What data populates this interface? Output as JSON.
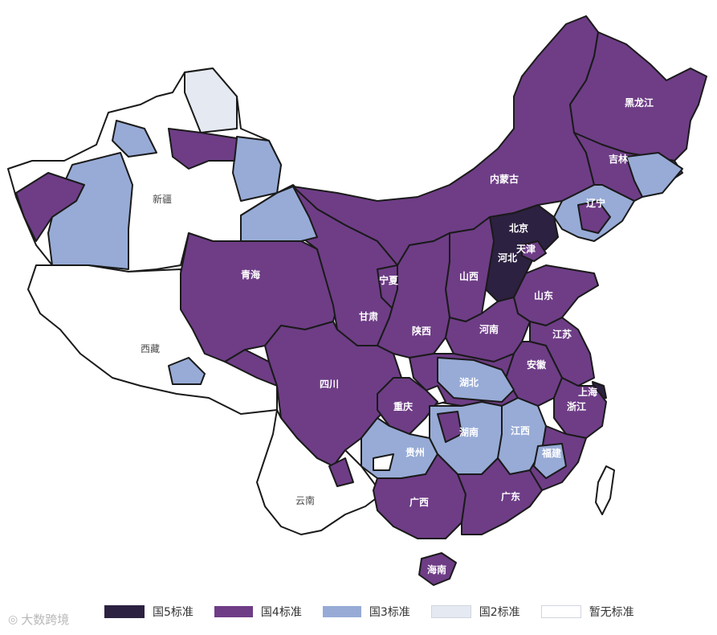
{
  "colors": {
    "guo5": "#2c2140",
    "guo4": "#6e3d86",
    "guo3": "#97abd6",
    "guo2": "#e5e9f1",
    "none": "#ffffff",
    "border": "#1a1a1a"
  },
  "provinces": {
    "heilongjiang": "黑龙江",
    "jilin": "吉林",
    "liaoning": "辽宁",
    "neimenggu": "内蒙古",
    "beijing": "北京",
    "tianjin": "天津",
    "hebei": "河北",
    "shanxi": "山西",
    "shandong": "山东",
    "ningxia": "宁夏",
    "gansu": "甘肃",
    "qinghai": "青海",
    "xinjiang": "新疆",
    "xizang": "西藏",
    "shaanxi": "陕西",
    "henan": "河南",
    "jiangsu": "江苏",
    "anhui": "安徽",
    "shanghai": "上海",
    "zhejiang": "浙江",
    "hubei": "湖北",
    "sichuan": "四川",
    "chongqing": "重庆",
    "hunan": "湖南",
    "jiangxi": "江西",
    "fujian": "福建",
    "guizhou": "贵州",
    "guangxi": "广西",
    "guangdong": "广东",
    "yunnan": "云南",
    "hainan": "海南"
  },
  "legend": [
    {
      "label": "国5标准",
      "color": "#2c2140"
    },
    {
      "label": "国4标准",
      "color": "#6e3d86"
    },
    {
      "label": "国3标准",
      "color": "#97abd6"
    },
    {
      "label": "国2标准",
      "color": "#e5e9f1"
    },
    {
      "label": "暂无标准",
      "color": "#ffffff"
    }
  ],
  "watermark": "大数跨境"
}
